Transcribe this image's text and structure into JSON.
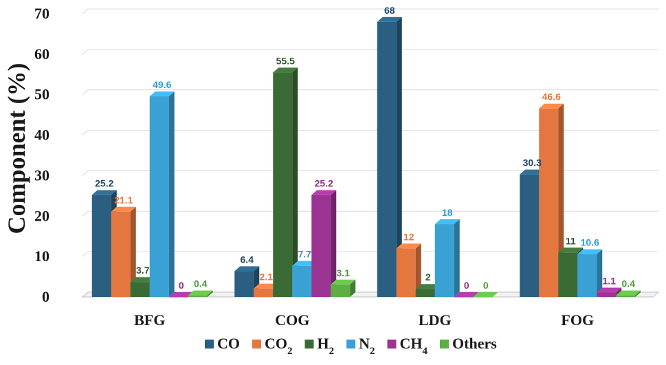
{
  "chart_data": {
    "type": "bar",
    "categories": [
      "BFG",
      "COG",
      "LDG",
      "FOG"
    ],
    "series": [
      {
        "name": "CO",
        "legend": {
          "base": "CO",
          "sub": ""
        },
        "labels": [
          "25.2",
          "6.4",
          "68",
          "30.3"
        ],
        "values": [
          25.2,
          6.4,
          68,
          30.3
        ],
        "color": "#2a5f81",
        "label_color": "#23466a"
      },
      {
        "name": "CO2",
        "legend": {
          "base": "CO",
          "sub": "2"
        },
        "labels": [
          "21.1",
          "2.1",
          "12",
          "46.6"
        ],
        "values": [
          21.1,
          2.1,
          12,
          46.6
        ],
        "color": "#e4763f",
        "label_color": "#e4763f"
      },
      {
        "name": "H2",
        "legend": {
          "base": "H",
          "sub": "2"
        },
        "labels": [
          "3.7",
          "55.5",
          "2",
          "11"
        ],
        "values": [
          3.7,
          55.5,
          2,
          11
        ],
        "color": "#3b6b35",
        "label_color": "#2f5a2b"
      },
      {
        "name": "N2",
        "legend": {
          "base": "N",
          "sub": "2"
        },
        "labels": [
          "49.6",
          "7.7",
          "18",
          "10.6"
        ],
        "values": [
          49.6,
          7.7,
          18,
          10.6
        ],
        "color": "#3aa1d4",
        "label_color": "#2f9ad0"
      },
      {
        "name": "CH4",
        "legend": {
          "base": "CH",
          "sub": "4"
        },
        "labels": [
          "0",
          "25.2",
          "0",
          "1.1"
        ],
        "values": [
          0,
          25.2,
          0,
          1.1
        ],
        "color": "#9b3493",
        "label_color": "#8e2f86"
      },
      {
        "name": "Others",
        "legend": {
          "base": "Others",
          "sub": ""
        },
        "labels": [
          "0.4",
          "3.1",
          "0",
          "0.4"
        ],
        "values": [
          0.4,
          3.1,
          0,
          0.4
        ],
        "color": "#5cae45",
        "label_color": "#4a9a38"
      }
    ],
    "title": "",
    "xlabel": "",
    "ylabel": "Component (%)",
    "ylim": [
      0,
      70
    ],
    "yticks": [
      0,
      10,
      20,
      30,
      40,
      50,
      60,
      70
    ],
    "grid": true,
    "legend_position": "bottom",
    "style": "3d-bar"
  }
}
